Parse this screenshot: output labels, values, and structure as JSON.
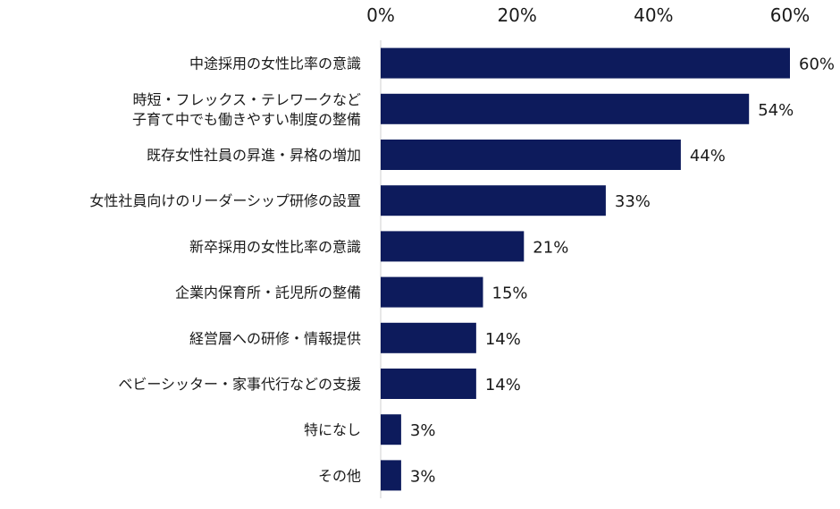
{
  "chart_data": {
    "type": "bar",
    "orientation": "horizontal",
    "categories": [
      "中途採用の女性比率の意識",
      "時短・フレックス・テレワークなど\n子育て中でも働きやすい制度の整備",
      "既存女性社員の昇進・昇格の増加",
      "女性社員向けのリーダーシップ研修の設置",
      "新卒採用の女性比率の意識",
      "企業内保育所・託児所の整備",
      "経営層への研修・情報提供",
      "ベビーシッター・家事代行などの支援",
      "特になし",
      "その他"
    ],
    "values": [
      60,
      54,
      44,
      33,
      21,
      15,
      14,
      14,
      3,
      3
    ],
    "data_labels": [
      "60%",
      "54%",
      "44%",
      "33%",
      "21%",
      "15%",
      "14%",
      "14%",
      "3%",
      "3%"
    ],
    "x_ticks": [
      "0%",
      "20%",
      "40%",
      "60%"
    ],
    "xlim": [
      0,
      60
    ],
    "axis_position": "top",
    "grid": false,
    "bar_color": "#0d1b5c"
  }
}
